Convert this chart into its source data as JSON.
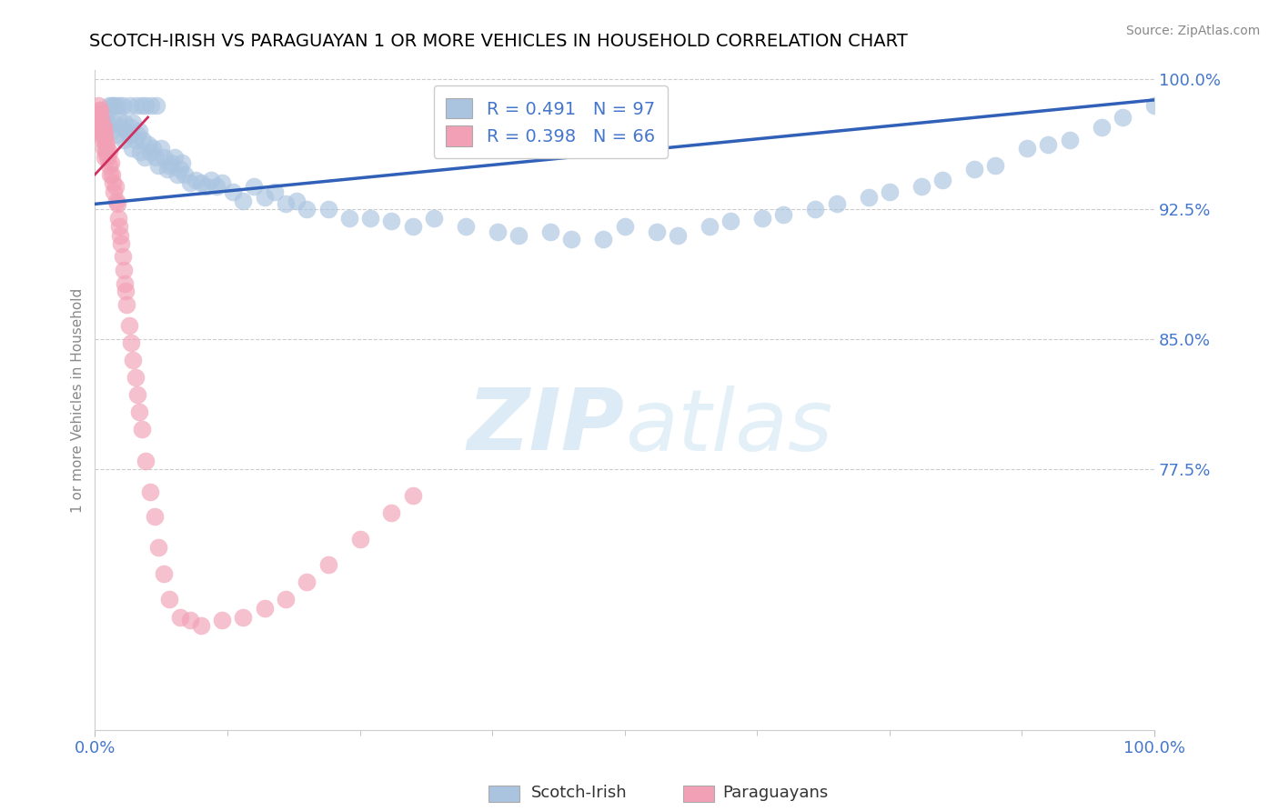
{
  "title": "SCOTCH-IRISH VS PARAGUAYAN 1 OR MORE VEHICLES IN HOUSEHOLD CORRELATION CHART",
  "source": "Source: ZipAtlas.com",
  "ylabel": "1 or more Vehicles in Household",
  "xmin": 0.0,
  "xmax": 1.0,
  "ymin": 0.625,
  "ymax": 1.005,
  "yticks": [
    0.775,
    0.85,
    0.925,
    1.0
  ],
  "ytick_labels": [
    "77.5%",
    "85.0%",
    "92.5%",
    "100.0%"
  ],
  "legend_r_blue": "R = 0.491",
  "legend_n_blue": "N = 97",
  "legend_r_pink": "R = 0.398",
  "legend_n_pink": "N = 66",
  "blue_color": "#aac4e0",
  "pink_color": "#f2a0b5",
  "blue_line_color": "#3060b8",
  "pink_line_color": "#d03060",
  "blue_line_x0": 0.0,
  "blue_line_y0": 0.928,
  "blue_line_x1": 1.0,
  "blue_line_y1": 0.988,
  "pink_line_x0": 0.0,
  "pink_line_y0": 0.945,
  "pink_line_x1": 0.05,
  "pink_line_y1": 0.978,
  "scotch_irish_x": [
    0.005,
    0.008,
    0.01,
    0.012,
    0.015,
    0.017,
    0.018,
    0.02,
    0.022,
    0.025,
    0.027,
    0.028,
    0.03,
    0.032,
    0.034,
    0.035,
    0.036,
    0.038,
    0.04,
    0.042,
    0.043,
    0.045,
    0.047,
    0.05,
    0.052,
    0.055,
    0.057,
    0.06,
    0.062,
    0.065,
    0.068,
    0.07,
    0.072,
    0.075,
    0.078,
    0.08,
    0.082,
    0.085,
    0.09,
    0.095,
    0.1,
    0.105,
    0.11,
    0.115,
    0.12,
    0.13,
    0.14,
    0.15,
    0.16,
    0.17,
    0.18,
    0.19,
    0.2,
    0.22,
    0.24,
    0.26,
    0.28,
    0.3,
    0.32,
    0.35,
    0.38,
    0.4,
    0.43,
    0.45,
    0.48,
    0.5,
    0.53,
    0.55,
    0.58,
    0.6,
    0.63,
    0.65,
    0.68,
    0.7,
    0.73,
    0.75,
    0.78,
    0.8,
    0.83,
    0.85,
    0.88,
    0.9,
    0.92,
    0.95,
    0.97,
    1.0,
    0.013,
    0.016,
    0.019,
    0.023,
    0.026,
    0.033,
    0.039,
    0.044,
    0.048,
    0.053,
    0.058
  ],
  "scotch_irish_y": [
    0.97,
    0.975,
    0.98,
    0.975,
    0.97,
    0.985,
    0.975,
    0.968,
    0.978,
    0.972,
    0.965,
    0.975,
    0.97,
    0.968,
    0.972,
    0.96,
    0.975,
    0.965,
    0.968,
    0.97,
    0.958,
    0.965,
    0.955,
    0.962,
    0.958,
    0.96,
    0.955,
    0.95,
    0.96,
    0.955,
    0.948,
    0.95,
    0.952,
    0.955,
    0.945,
    0.948,
    0.952,
    0.945,
    0.94,
    0.942,
    0.94,
    0.938,
    0.942,
    0.938,
    0.94,
    0.935,
    0.93,
    0.938,
    0.932,
    0.935,
    0.928,
    0.93,
    0.925,
    0.925,
    0.92,
    0.92,
    0.918,
    0.915,
    0.92,
    0.915,
    0.912,
    0.91,
    0.912,
    0.908,
    0.908,
    0.915,
    0.912,
    0.91,
    0.915,
    0.918,
    0.92,
    0.922,
    0.925,
    0.928,
    0.932,
    0.935,
    0.938,
    0.942,
    0.948,
    0.95,
    0.96,
    0.962,
    0.965,
    0.972,
    0.978,
    0.985,
    0.985,
    0.985,
    0.985,
    0.985,
    0.985,
    0.985,
    0.985,
    0.985,
    0.985,
    0.985,
    0.985
  ],
  "paraguayan_x": [
    0.002,
    0.003,
    0.004,
    0.005,
    0.005,
    0.006,
    0.006,
    0.007,
    0.007,
    0.008,
    0.008,
    0.009,
    0.009,
    0.01,
    0.01,
    0.011,
    0.012,
    0.013,
    0.013,
    0.014,
    0.015,
    0.016,
    0.017,
    0.018,
    0.019,
    0.02,
    0.021,
    0.022,
    0.023,
    0.024,
    0.025,
    0.026,
    0.027,
    0.028,
    0.029,
    0.03,
    0.032,
    0.034,
    0.036,
    0.038,
    0.04,
    0.042,
    0.044,
    0.048,
    0.052,
    0.056,
    0.06,
    0.065,
    0.07,
    0.08,
    0.09,
    0.1,
    0.12,
    0.14,
    0.16,
    0.18,
    0.2,
    0.22,
    0.25,
    0.28,
    0.3,
    0.003,
    0.004,
    0.006,
    0.008,
    0.011
  ],
  "paraguayan_y": [
    0.98,
    0.975,
    0.978,
    0.97,
    0.982,
    0.968,
    0.975,
    0.972,
    0.965,
    0.97,
    0.96,
    0.968,
    0.955,
    0.965,
    0.958,
    0.96,
    0.955,
    0.95,
    0.958,
    0.945,
    0.952,
    0.945,
    0.94,
    0.935,
    0.938,
    0.93,
    0.928,
    0.92,
    0.915,
    0.91,
    0.905,
    0.898,
    0.89,
    0.882,
    0.878,
    0.87,
    0.858,
    0.848,
    0.838,
    0.828,
    0.818,
    0.808,
    0.798,
    0.78,
    0.762,
    0.748,
    0.73,
    0.715,
    0.7,
    0.69,
    0.688,
    0.685,
    0.688,
    0.69,
    0.695,
    0.7,
    0.71,
    0.72,
    0.735,
    0.75,
    0.76,
    0.985,
    0.982,
    0.978,
    0.972,
    0.962
  ]
}
